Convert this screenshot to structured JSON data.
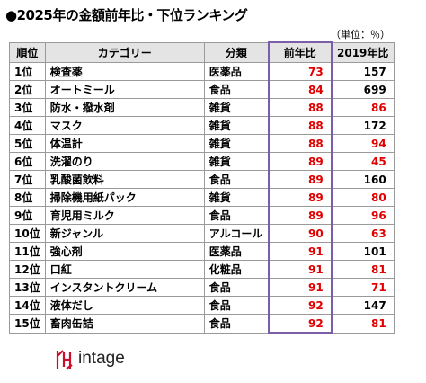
{
  "header": {
    "title": "●2025年の金額前年比・下位ランキング",
    "unit": "（単位：％）"
  },
  "table": {
    "columns": [
      "順位",
      "カテゴリー",
      "分類",
      "前年比",
      "2019年比"
    ],
    "rows": [
      [
        "1位",
        "検査薬",
        "医薬品",
        73,
        157
      ],
      [
        "2位",
        "オートミール",
        "食品",
        84,
        699
      ],
      [
        "3位",
        "防水・撥水剤",
        "雑貨",
        88,
        86
      ],
      [
        "4位",
        "マスク",
        "雑貨",
        88,
        172
      ],
      [
        "5位",
        "体温計",
        "雑貨",
        88,
        94
      ],
      [
        "6位",
        "洗濯のり",
        "雑貨",
        89,
        45
      ],
      [
        "7位",
        "乳酸菌飲料",
        "食品",
        89,
        160
      ],
      [
        "8位",
        "掃除機用紙パック",
        "雑貨",
        89,
        80
      ],
      [
        "9位",
        "育児用ミルク",
        "食品",
        89,
        96
      ],
      [
        "10位",
        "新ジャンル",
        "アルコール",
        90,
        63
      ],
      [
        "11位",
        "強心剤",
        "医薬品",
        91,
        101
      ],
      [
        "12位",
        "口紅",
        "化粧品",
        91,
        81
      ],
      [
        "13位",
        "インスタントクリーム",
        "食品",
        91,
        71
      ],
      [
        "14位",
        "液体だし",
        "食品",
        92,
        147
      ],
      [
        "15位",
        "畜肉缶詰",
        "食品",
        92,
        81
      ]
    ]
  },
  "footer": {
    "logo": "intage"
  }
}
